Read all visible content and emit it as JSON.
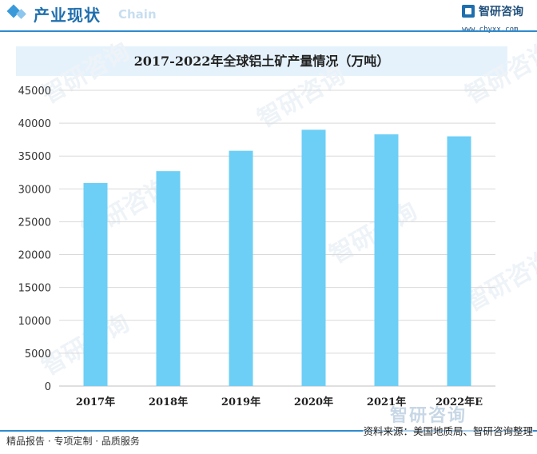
{
  "header": {
    "title": "产业现状",
    "ghost_text": "Chain",
    "brand_name": "智研咨询",
    "brand_url": "www.chyxx.com"
  },
  "chart_data": {
    "type": "bar",
    "title": "2017-2022年全球铝土矿产量情况（万吨）",
    "categories": [
      "2017年",
      "2018年",
      "2019年",
      "2020年",
      "2021年",
      "2022年E"
    ],
    "values": [
      30900,
      32700,
      35800,
      39000,
      38300,
      38000
    ],
    "ylim": [
      0,
      45000
    ],
    "yticks": [
      0,
      5000,
      10000,
      15000,
      20000,
      25000,
      30000,
      35000,
      40000,
      45000
    ],
    "grid": true,
    "legend": "none",
    "bar_color": "#6dcff6"
  },
  "watermark": {
    "text": "智研咨询"
  },
  "footer": {
    "left_text": "精品报告 · 专项定制 · 品质服务",
    "source": "资料来源：美国地质局、智研咨询整理"
  },
  "colors": {
    "accent": "#2e8bd0",
    "title_blue": "#1f6fae",
    "title_box": "#e5f2fc",
    "grid": "#d9d9d9"
  }
}
